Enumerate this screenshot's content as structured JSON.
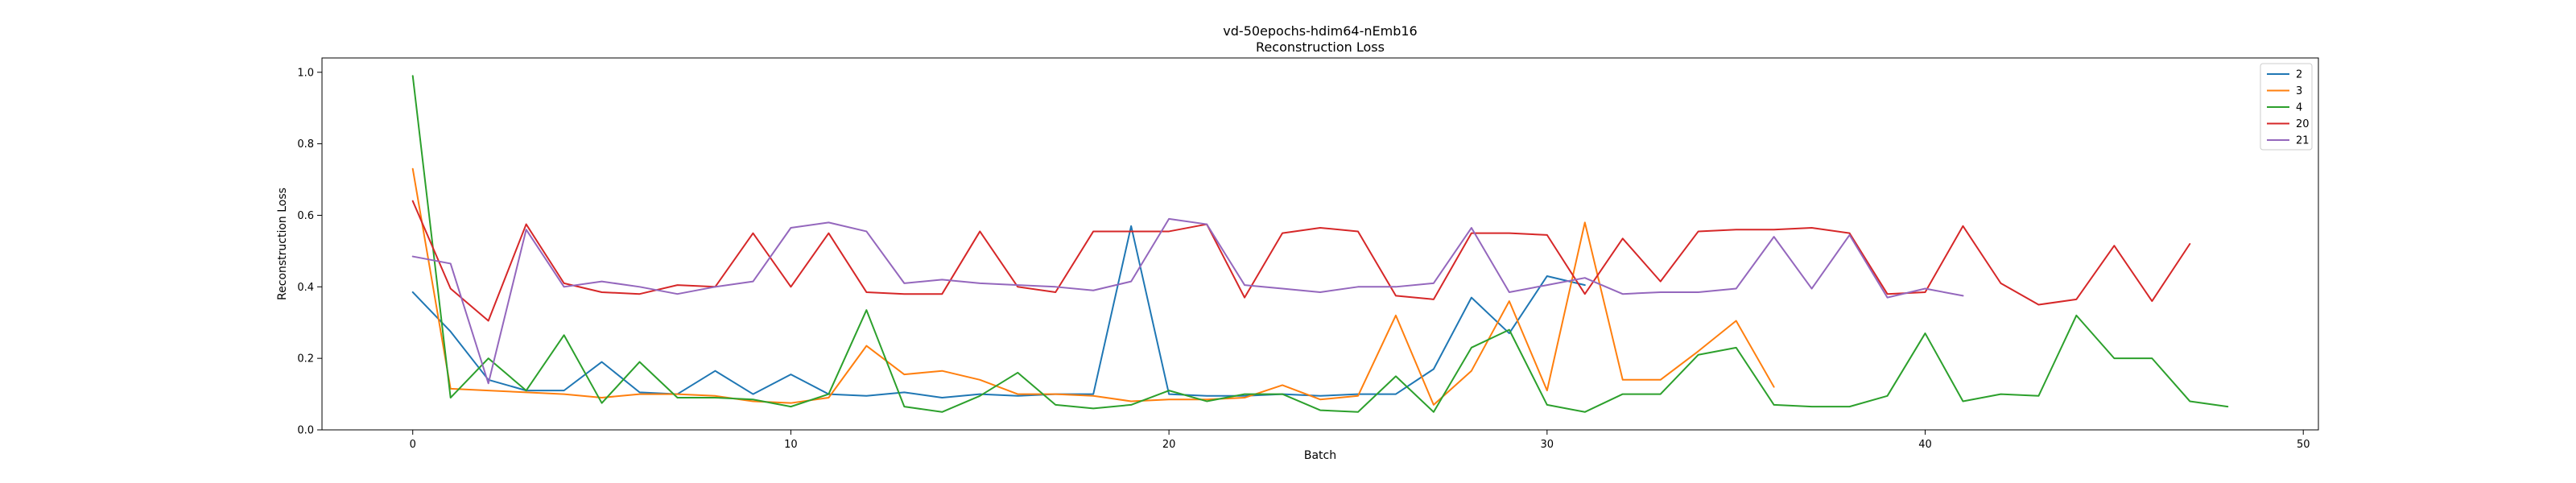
{
  "chart_data": {
    "type": "line",
    "title": "vd-50epochs-hdim64-nEmb16",
    "subtitle": "Reconstruction Loss",
    "xlabel": "Batch",
    "ylabel": "Reconstruction Loss",
    "xlim": [
      -2.4,
      50.4
    ],
    "ylim": [
      0.0,
      1.04
    ],
    "xticks": [
      0,
      10,
      20,
      30,
      40,
      50
    ],
    "yticks": [
      0.0,
      0.2,
      0.4,
      0.6,
      0.8,
      1.0
    ],
    "grid": false,
    "legend_position": "top-right",
    "series": [
      {
        "name": "2",
        "color": "#1f77b4",
        "x": [
          0,
          1,
          2,
          3,
          4,
          5,
          6,
          7,
          8,
          9,
          10,
          11,
          12,
          13,
          14,
          15,
          16,
          17,
          18,
          19,
          20,
          21,
          22,
          23,
          24,
          25,
          26,
          27,
          28,
          29,
          30,
          31
        ],
        "y": [
          0.385,
          0.275,
          0.14,
          0.11,
          0.11,
          0.19,
          0.105,
          0.1,
          0.165,
          0.1,
          0.155,
          0.1,
          0.095,
          0.105,
          0.09,
          0.1,
          0.095,
          0.1,
          0.1,
          0.57,
          0.1,
          0.095,
          0.095,
          0.1,
          0.095,
          0.1,
          0.1,
          0.17,
          0.37,
          0.27,
          0.43,
          0.405
        ]
      },
      {
        "name": "3",
        "color": "#ff7f0e",
        "x": [
          0,
          1,
          2,
          3,
          4,
          5,
          6,
          7,
          8,
          9,
          10,
          11,
          12,
          13,
          14,
          15,
          16,
          17,
          18,
          19,
          20,
          21,
          22,
          23,
          24,
          25,
          26,
          27,
          28,
          29,
          30,
          31,
          32,
          33,
          34,
          35,
          36
        ],
        "y": [
          0.73,
          0.115,
          0.11,
          0.105,
          0.1,
          0.09,
          0.1,
          0.1,
          0.095,
          0.08,
          0.075,
          0.09,
          0.235,
          0.155,
          0.165,
          0.14,
          0.1,
          0.1,
          0.095,
          0.08,
          0.085,
          0.085,
          0.09,
          0.125,
          0.085,
          0.095,
          0.32,
          0.07,
          0.165,
          0.36,
          0.11,
          0.58,
          0.14,
          0.14,
          0.22,
          0.305,
          0.12
        ]
      },
      {
        "name": "4",
        "color": "#2ca02c",
        "x": [
          0,
          1,
          2,
          3,
          4,
          5,
          6,
          7,
          8,
          9,
          10,
          11,
          12,
          13,
          14,
          15,
          16,
          17,
          18,
          19,
          20,
          21,
          22,
          23,
          24,
          25,
          26,
          27,
          28,
          29,
          30,
          31,
          32,
          33,
          34,
          35,
          36,
          37,
          38,
          39,
          40,
          41,
          42,
          43,
          44,
          45,
          46,
          47,
          48
        ],
        "y": [
          0.99,
          0.09,
          0.2,
          0.11,
          0.265,
          0.075,
          0.19,
          0.09,
          0.09,
          0.085,
          0.065,
          0.1,
          0.335,
          0.065,
          0.05,
          0.095,
          0.16,
          0.07,
          0.06,
          0.07,
          0.11,
          0.08,
          0.1,
          0.1,
          0.055,
          0.05,
          0.15,
          0.05,
          0.23,
          0.28,
          0.07,
          0.05,
          0.1,
          0.1,
          0.21,
          0.23,
          0.07,
          0.065,
          0.065,
          0.095,
          0.27,
          0.08,
          0.1,
          0.095,
          0.32,
          0.2,
          0.2,
          0.08,
          0.065
        ]
      },
      {
        "name": "20",
        "color": "#d62728",
        "x": [
          0,
          1,
          2,
          3,
          4,
          5,
          6,
          7,
          8,
          9,
          10,
          11,
          12,
          13,
          14,
          15,
          16,
          17,
          18,
          19,
          20,
          21,
          22,
          23,
          24,
          25,
          26,
          27,
          28,
          29,
          30,
          31,
          32,
          33,
          34,
          35,
          36,
          37,
          38,
          39,
          40,
          41,
          42,
          43,
          44,
          45,
          46,
          47
        ],
        "y": [
          0.64,
          0.395,
          0.305,
          0.575,
          0.41,
          0.385,
          0.38,
          0.405,
          0.4,
          0.55,
          0.4,
          0.55,
          0.385,
          0.38,
          0.38,
          0.555,
          0.4,
          0.385,
          0.555,
          0.555,
          0.555,
          0.575,
          0.37,
          0.55,
          0.565,
          0.555,
          0.375,
          0.365,
          0.55,
          0.55,
          0.545,
          0.38,
          0.535,
          0.415,
          0.555,
          0.56,
          0.56,
          0.565,
          0.55,
          0.38,
          0.385,
          0.57,
          0.41,
          0.35,
          0.365,
          0.515,
          0.36,
          0.52
        ]
      },
      {
        "name": "21",
        "color": "#9467bd",
        "x": [
          0,
          1,
          2,
          3,
          4,
          5,
          6,
          7,
          8,
          9,
          10,
          11,
          12,
          13,
          14,
          15,
          16,
          17,
          18,
          19,
          20,
          21,
          22,
          23,
          24,
          25,
          26,
          27,
          28,
          29,
          30,
          31,
          32,
          33,
          34,
          35,
          36,
          37,
          38,
          39,
          40,
          41
        ],
        "y": [
          0.485,
          0.465,
          0.13,
          0.56,
          0.4,
          0.415,
          0.4,
          0.38,
          0.4,
          0.415,
          0.565,
          0.58,
          0.555,
          0.41,
          0.42,
          0.41,
          0.405,
          0.4,
          0.39,
          0.415,
          0.59,
          0.575,
          0.405,
          0.395,
          0.385,
          0.4,
          0.4,
          0.41,
          0.565,
          0.385,
          0.405,
          0.425,
          0.38,
          0.385,
          0.385,
          0.395,
          0.54,
          0.395,
          0.545,
          0.37,
          0.395,
          0.375
        ]
      }
    ]
  }
}
